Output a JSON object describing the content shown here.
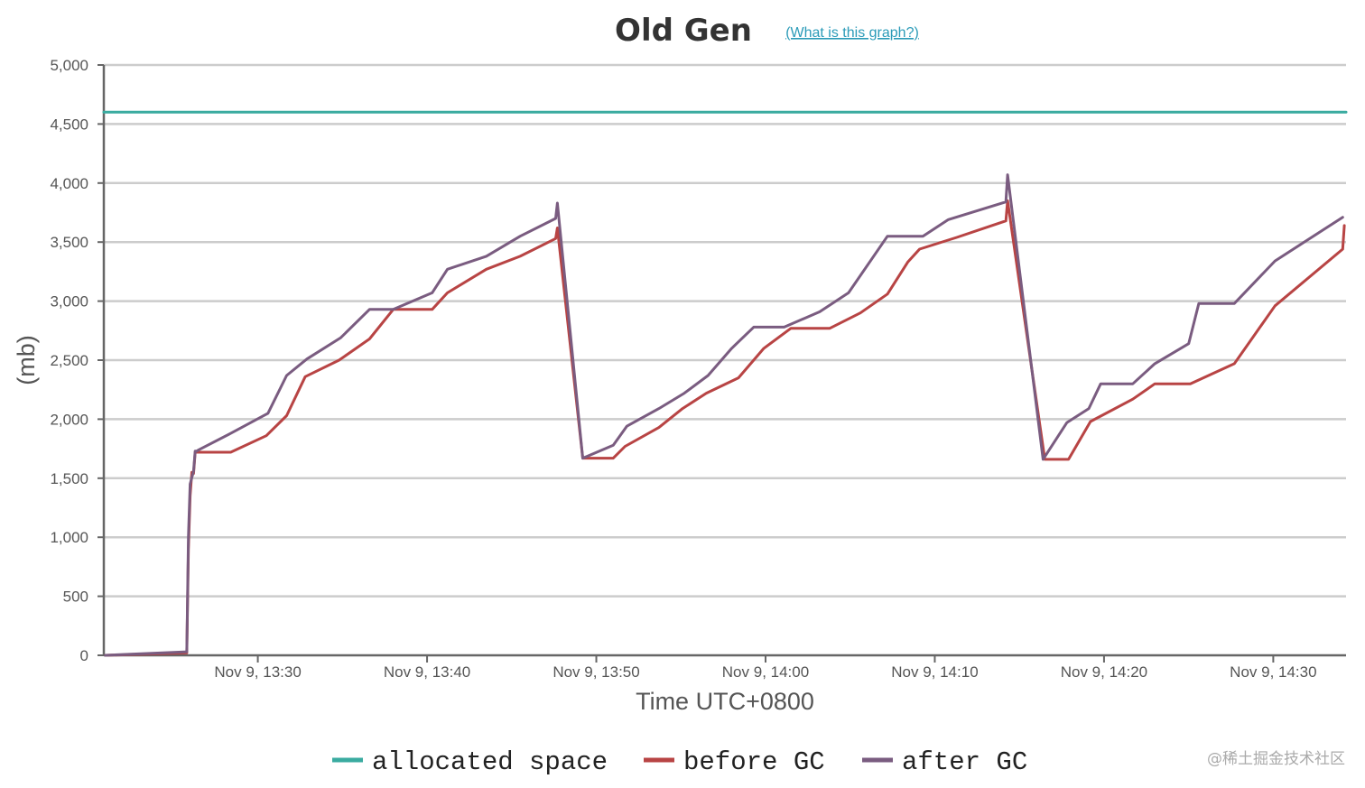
{
  "chart_data": {
    "type": "line",
    "title": "Old Gen",
    "help_link": "(What is this graph?)",
    "xlabel": "Time UTC+0800",
    "ylabel": "(mb)",
    "ylim": [
      0,
      5000
    ],
    "y_ticks": [
      0,
      500,
      1000,
      1500,
      2000,
      2500,
      3000,
      3500,
      4000,
      4500,
      5000
    ],
    "y_tick_labels": [
      "0",
      "500",
      "1,000",
      "1,500",
      "2,000",
      "2,500",
      "3,000",
      "3,500",
      "4,000",
      "4,500",
      "5,000"
    ],
    "x_unit": "minutes",
    "xlim": [
      "Nov 9, 13:20.9",
      "Nov 9, 14:34.3"
    ],
    "x_ticks": [
      {
        "label": "Nov 9, 13:30",
        "x": "Nov 9, 13:30"
      },
      {
        "label": "Nov 9, 13:40",
        "x": "Nov 9, 13:40"
      },
      {
        "label": "Nov 9, 13:50",
        "x": "Nov 9, 13:50"
      },
      {
        "label": "Nov 9, 14:00",
        "x": "Nov 9, 14:00"
      },
      {
        "label": "Nov 9, 14:10",
        "x": "Nov 9, 14:10"
      },
      {
        "label": "Nov 9, 14:20",
        "x": "Nov 9, 14:20"
      },
      {
        "label": "Nov 9, 14:30",
        "x": "Nov 9, 14:30"
      }
    ],
    "grid": true,
    "legend_position": "bottom-center",
    "series": [
      {
        "name": "allocated space",
        "color": "#3aaba0",
        "x": [
          "Nov 9, 13:20.9",
          "Nov 9, 14:34.3"
        ],
        "y": [
          4600,
          4600
        ]
      },
      {
        "name": "before GC",
        "color": "#b84444",
        "x": [
          "Nov 9, 13:21.0",
          "Nov 9, 13:25.8",
          "Nov 9, 13:25.9",
          "Nov 9, 13:26.0",
          "Nov 9, 13:26.1",
          "Nov 9, 13:26.2",
          "Nov 9, 13:26.3",
          "Nov 9, 13:26.4",
          "Nov 9, 13:26.5",
          "Nov 9, 13:28.4",
          "Nov 9, 13:30.5",
          "Nov 9, 13:31.7",
          "Nov 9, 13:32.8",
          "Nov 9, 13:34.8",
          "Nov 9, 13:36.6",
          "Nov 9, 13:38.0",
          "Nov 9, 13:40.3",
          "Nov 9, 13:41.2",
          "Nov 9, 13:43.5",
          "Nov 9, 13:45.5",
          "Nov 9, 13:47.6",
          "Nov 9, 13:47.7",
          "Nov 9, 13:49.2",
          "Nov 9, 13:51.0",
          "Nov 9, 13:51.7",
          "Nov 9, 13:53.7",
          "Nov 9, 13:55.1",
          "Nov 9, 13:56.5",
          "Nov 9, 13:58.4",
          "Nov 9, 13:59.9",
          "Nov 9, 14:01.5",
          "Nov 9, 14:03.8",
          "Nov 9, 14:05.6",
          "Nov 9, 14:07.2",
          "Nov 9, 14:08.4",
          "Nov 9, 14:09.1",
          "Nov 9, 14:11.3",
          "Nov 9, 14:14.2",
          "Nov 9, 14:14.3",
          "Nov 9, 14:16.5",
          "Nov 9, 14:17.9",
          "Nov 9, 14:19.2",
          "Nov 9, 14:21.7",
          "Nov 9, 14:23.0",
          "Nov 9, 14:25.1",
          "Nov 9, 14:27.7",
          "Nov 9, 14:30.1",
          "Nov 9, 14:34.1",
          "Nov 9, 14:34.2"
        ],
        "y": [
          0,
          20,
          900,
          1350,
          1550,
          1540,
          1720,
          1720,
          1720,
          1720,
          1860,
          2030,
          2360,
          2500,
          2680,
          2930,
          2930,
          3070,
          3270,
          3380,
          3530,
          3620,
          1670,
          1670,
          1770,
          1930,
          2090,
          2220,
          2350,
          2600,
          2770,
          2770,
          2900,
          3060,
          3330,
          3440,
          3540,
          3680,
          3850,
          1660,
          1660,
          1980,
          2170,
          2300,
          2300,
          2470,
          2960,
          3440,
          3640
        ]
      },
      {
        "name": "after GC",
        "color": "#7a5c80",
        "x": [
          "Nov 9, 13:21.0",
          "Nov 9, 13:25.8",
          "Nov 9, 13:25.9",
          "Nov 9, 13:26.0",
          "Nov 9, 13:26.2",
          "Nov 9, 13:26.3",
          "Nov 9, 13:26.4",
          "Nov 9, 13:26.5",
          "Nov 9, 13:28.4",
          "Nov 9, 13:30.6",
          "Nov 9, 13:31.7",
          "Nov 9, 13:32.9",
          "Nov 9, 13:34.9",
          "Nov 9, 13:36.6",
          "Nov 9, 13:38.0",
          "Nov 9, 13:40.3",
          "Nov 9, 13:41.2",
          "Nov 9, 13:43.5",
          "Nov 9, 13:45.5",
          "Nov 9, 13:47.6",
          "Nov 9, 13:47.7",
          "Nov 9, 13:49.2",
          "Nov 9, 13:51.0",
          "Nov 9, 13:51.8",
          "Nov 9, 13:53.7",
          "Nov 9, 13:55.2",
          "Nov 9, 13:56.6",
          "Nov 9, 13:58.0",
          "Nov 9, 13:59.3",
          "Nov 9, 14:01.1",
          "Nov 9, 14:03.2",
          "Nov 9, 14:04.9",
          "Nov 9, 14:07.2",
          "Nov 9, 14:09.3",
          "Nov 9, 14:10.8",
          "Nov 9, 14:14.2",
          "Nov 9, 14:14.3",
          "Nov 9, 14:16.4",
          "Nov 9, 14:17.8",
          "Nov 9, 14:19.1",
          "Nov 9, 14:19.8",
          "Nov 9, 14:21.7",
          "Nov 9, 14:23.0",
          "Nov 9, 14:25.0",
          "Nov 9, 14:25.6",
          "Nov 9, 14:27.7",
          "Nov 9, 14:30.1",
          "Nov 9, 14:34.1"
        ],
        "y": [
          0,
          30,
          1000,
          1450,
          1560,
          1730,
          1730,
          1740,
          1880,
          2050,
          2370,
          2510,
          2690,
          2930,
          2930,
          3070,
          3270,
          3380,
          3550,
          3700,
          3830,
          1670,
          1780,
          1940,
          2090,
          2220,
          2370,
          2600,
          2780,
          2780,
          2910,
          3070,
          3550,
          3550,
          3690,
          3840,
          4070,
          1660,
          1970,
          2090,
          2300,
          2300,
          2470,
          2640,
          2980,
          2980,
          3340,
          3710
        ]
      }
    ]
  },
  "watermark": "@稀土掘金技术社区"
}
